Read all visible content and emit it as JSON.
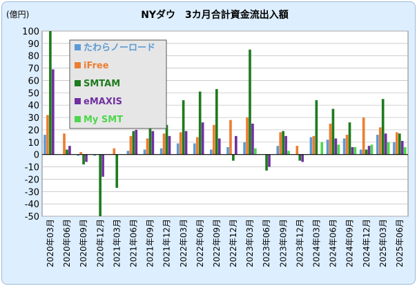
{
  "chart_data": {
    "type": "bar",
    "title": "NYダウ　3カ月合計資金流出入額",
    "ylabel": "(億円)",
    "ylim": [
      -50,
      100
    ],
    "yticks": [
      100,
      90,
      80,
      70,
      60,
      50,
      40,
      30,
      20,
      10,
      0,
      -10,
      -20,
      -30,
      -40,
      -50
    ],
    "grid": true,
    "legend_position": "top-left",
    "categories": [
      "2020年03月",
      "2020年06月",
      "2020年09月",
      "2020年12月",
      "2021年03月",
      "2021年06月",
      "2021年09月",
      "2021年12月",
      "2022年03月",
      "2022年06月",
      "2022年09月",
      "2022年12月",
      "2023年03月",
      "2023年06月",
      "2023年09月",
      "2023年12月",
      "2024年03月",
      "2024年06月",
      "2024年09月",
      "2024年12月",
      "2025年03月",
      "2025年06月"
    ],
    "series": [
      {
        "name": "たわらノーロード",
        "color": "#5b9bd5",
        "values": [
          16,
          0,
          -1,
          -1,
          0,
          3,
          4,
          5,
          9,
          9,
          4,
          6,
          10,
          0,
          7,
          0,
          14,
          12,
          13,
          4,
          16,
          10
        ]
      },
      {
        "name": "iFree",
        "color": "#ed7d31",
        "values": [
          32,
          17,
          2,
          0,
          5,
          15,
          13,
          17,
          18,
          14,
          24,
          28,
          30,
          0,
          18,
          7,
          15,
          25,
          16,
          30,
          22,
          18
        ]
      },
      {
        "name": "SMTAM",
        "color": "#1e7b1e",
        "values": [
          100,
          4,
          -8,
          -50,
          -27,
          19,
          29,
          24,
          44,
          51,
          53,
          -5,
          85,
          -13,
          19,
          -5,
          44,
          37,
          26,
          4,
          45,
          17
        ]
      },
      {
        "name": "eMAXIS",
        "color": "#7030a0",
        "values": [
          69,
          7,
          -6,
          -18,
          0,
          20,
          19,
          15,
          19,
          26,
          13,
          15,
          25,
          -10,
          15,
          -6,
          0,
          13,
          6,
          7,
          17,
          11
        ]
      },
      {
        "name": "My SMT",
        "color": "#4cd74c",
        "values": [
          0,
          0,
          0,
          0,
          0,
          0,
          0,
          0,
          0,
          0,
          0,
          0,
          5,
          0,
          3,
          0,
          10,
          8,
          6,
          8,
          10,
          6
        ]
      }
    ]
  }
}
